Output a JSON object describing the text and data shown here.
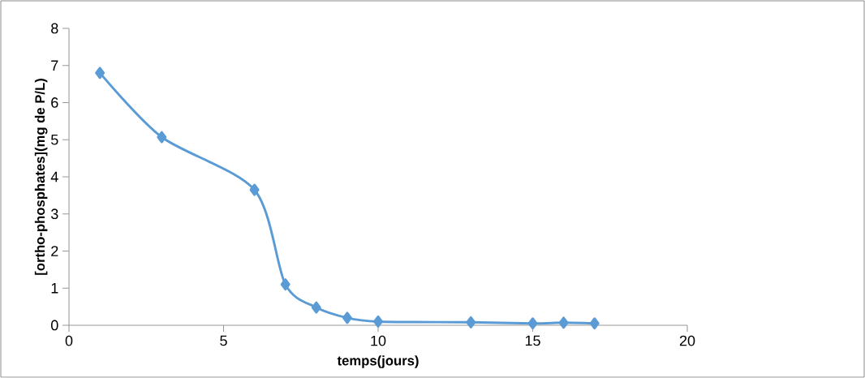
{
  "chart_data": {
    "type": "line",
    "xlabel": "temps(jours)",
    "ylabel": "[ortho-phosphates](mg de P/L)",
    "x": [
      1,
      3,
      6,
      7,
      8,
      9,
      10,
      13,
      15,
      16,
      17
    ],
    "series": [
      {
        "color": "#5b9bd5",
        "values": [
          6.8,
          5.07,
          3.65,
          1.1,
          0.48,
          0.2,
          0.1,
          0.08,
          0.05,
          0.07,
          0.05
        ]
      }
    ],
    "xlim": [
      0,
      20
    ],
    "ylim": [
      0,
      8
    ],
    "xticks": [
      0,
      5,
      10,
      15,
      20
    ],
    "yticks": [
      0,
      1,
      2,
      3,
      4,
      5,
      6,
      7,
      8
    ],
    "marker": "diamond",
    "line_style": "solid"
  }
}
